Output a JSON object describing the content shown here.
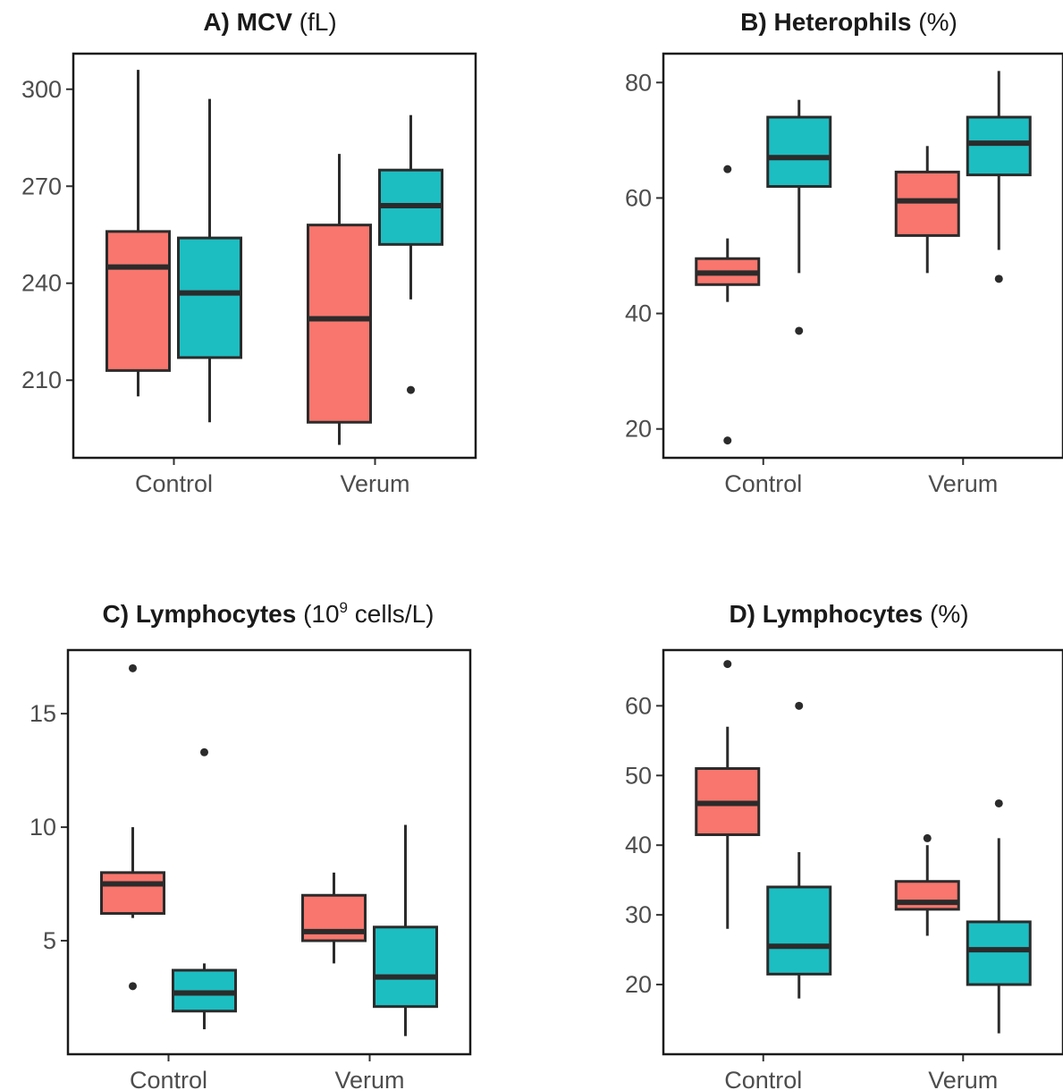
{
  "colors": {
    "group1": "#F8766D",
    "group2": "#1CBEC2",
    "line": "#2b2b2b"
  },
  "chart_data": [
    {
      "type": "box",
      "title_bold": "A) MCV",
      "title_unit": "(fL)",
      "title_sup": "",
      "title_unit_after": "",
      "categories": [
        "Control",
        "Verum"
      ],
      "ylim": [
        186,
        311
      ],
      "yticks": [
        210,
        240,
        270,
        300
      ],
      "boxes": [
        {
          "category": "Control",
          "group": 1,
          "min": 205,
          "q1": 213,
          "median": 245,
          "q3": 256,
          "max": 306,
          "outliers": []
        },
        {
          "category": "Control",
          "group": 2,
          "min": 197,
          "q1": 217,
          "median": 237,
          "q3": 254,
          "max": 297,
          "outliers": []
        },
        {
          "category": "Verum",
          "group": 1,
          "min": 190,
          "q1": 197,
          "median": 229,
          "q3": 258,
          "max": 280,
          "outliers": []
        },
        {
          "category": "Verum",
          "group": 2,
          "min": 235,
          "q1": 252,
          "median": 264,
          "q3": 275,
          "max": 292,
          "outliers": [
            207
          ]
        }
      ]
    },
    {
      "type": "box",
      "title_bold": "B) Heterophils",
      "title_unit": "(%)",
      "title_sup": "",
      "title_unit_after": "",
      "categories": [
        "Control",
        "Verum"
      ],
      "ylim": [
        15,
        85
      ],
      "yticks": [
        20,
        40,
        60,
        80
      ],
      "boxes": [
        {
          "category": "Control",
          "group": 1,
          "min": 42,
          "q1": 45,
          "median": 47,
          "q3": 49.5,
          "max": 53,
          "outliers": [
            65,
            18
          ]
        },
        {
          "category": "Control",
          "group": 2,
          "min": 47,
          "q1": 62,
          "median": 67,
          "q3": 74,
          "max": 77,
          "outliers": [
            37
          ]
        },
        {
          "category": "Verum",
          "group": 1,
          "min": 47,
          "q1": 53.5,
          "median": 59.5,
          "q3": 64.5,
          "max": 69,
          "outliers": []
        },
        {
          "category": "Verum",
          "group": 2,
          "min": 51,
          "q1": 64,
          "median": 69.5,
          "q3": 74,
          "max": 82,
          "outliers": [
            46
          ]
        }
      ]
    },
    {
      "type": "box",
      "title_bold": "C) Lymphocytes",
      "title_unit": "(10",
      "title_sup": "9",
      "title_unit_after": " cells/L)",
      "categories": [
        "Control",
        "Verum"
      ],
      "ylim": [
        0,
        17.8
      ],
      "yticks": [
        5,
        10,
        15
      ],
      "boxes": [
        {
          "category": "Control",
          "group": 1,
          "min": 6,
          "q1": 6.2,
          "median": 7.5,
          "q3": 8,
          "max": 10,
          "outliers": [
            17,
            3
          ]
        },
        {
          "category": "Control",
          "group": 2,
          "min": 1.1,
          "q1": 1.9,
          "median": 2.7,
          "q3": 3.7,
          "max": 4,
          "outliers": [
            13.3
          ]
        },
        {
          "category": "Verum",
          "group": 1,
          "min": 4,
          "q1": 5,
          "median": 5.4,
          "q3": 7,
          "max": 8,
          "outliers": []
        },
        {
          "category": "Verum",
          "group": 2,
          "min": 0.8,
          "q1": 2.1,
          "median": 3.4,
          "q3": 5.6,
          "max": 10.1,
          "outliers": []
        }
      ]
    },
    {
      "type": "box",
      "title_bold": "D) Lymphocytes",
      "title_unit": "(%)",
      "title_sup": "",
      "title_unit_after": "",
      "categories": [
        "Control",
        "Verum"
      ],
      "ylim": [
        10,
        68
      ],
      "yticks": [
        20,
        30,
        40,
        50,
        60
      ],
      "boxes": [
        {
          "category": "Control",
          "group": 1,
          "min": 28,
          "q1": 41.5,
          "median": 46,
          "q3": 51,
          "max": 57,
          "outliers": [
            66
          ]
        },
        {
          "category": "Control",
          "group": 2,
          "min": 18,
          "q1": 21.5,
          "median": 25.5,
          "q3": 34,
          "max": 39,
          "outliers": [
            60
          ]
        },
        {
          "category": "Verum",
          "group": 1,
          "min": 27,
          "q1": 30.8,
          "median": 31.8,
          "q3": 34.8,
          "max": 40,
          "outliers": [
            41
          ]
        },
        {
          "category": "Verum",
          "group": 2,
          "min": 13,
          "q1": 20,
          "median": 25,
          "q3": 29,
          "max": 41,
          "outliers": [
            46
          ]
        }
      ]
    }
  ]
}
